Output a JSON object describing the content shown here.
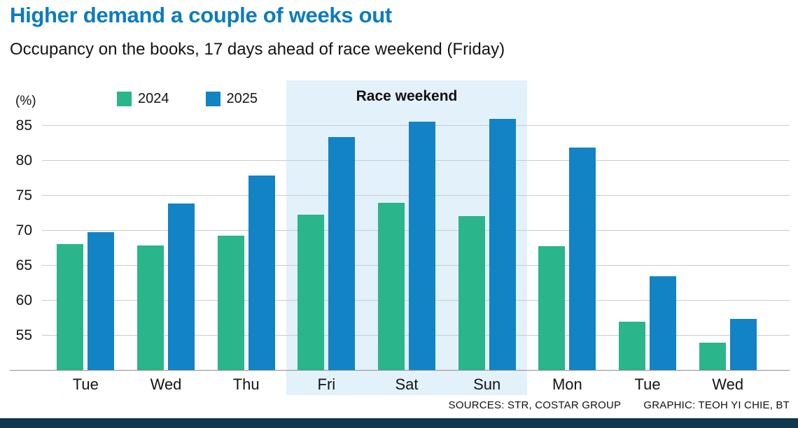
{
  "header": {
    "title": "Higher demand a couple of weeks out",
    "subtitle": "Occupancy on the books, 17 days ahead of race weekend (Friday)"
  },
  "chart_data": {
    "type": "bar",
    "title": "Higher demand a couple of weeks out",
    "subtitle": "Occupancy on the books, 17 days ahead of race weekend (Friday)",
    "unit_label": "(%)",
    "categories": [
      "Tue",
      "Wed",
      "Thu",
      "Fri",
      "Sat",
      "Sun",
      "Mon",
      "Tue",
      "Wed"
    ],
    "series": [
      {
        "name": "2024",
        "color": "#2ab58a",
        "values": [
          68.1,
          67.9,
          69.3,
          72.3,
          74.0,
          72.1,
          67.8,
          57.0,
          54.0
        ]
      },
      {
        "name": "2025",
        "color": "#1283c5",
        "values": [
          69.8,
          73.9,
          77.9,
          83.4,
          85.6,
          86.0,
          81.9,
          63.5,
          57.4
        ]
      }
    ],
    "y_ticks": [
      55,
      60,
      65,
      70,
      75,
      80,
      85
    ],
    "ylim": [
      50,
      87
    ],
    "grid": true,
    "legend_position": "top",
    "highlight": {
      "label": "Race weekend",
      "categories": [
        "Fri",
        "Sat",
        "Sun"
      ],
      "start_index": 3,
      "end_index": 5,
      "color": "#e3f1fb"
    }
  },
  "footer": {
    "sources": "SOURCES: STR, COSTAR GROUP",
    "credit": "GRAPHIC: TEOH YI CHIE, BT"
  },
  "colors": {
    "title": "#0b7cbd",
    "series_2024": "#2ab58a",
    "series_2025": "#1283c5",
    "highlight_bg": "#e3f1fb",
    "gridline": "#cbcbcb",
    "footer_bar": "#10384f"
  }
}
